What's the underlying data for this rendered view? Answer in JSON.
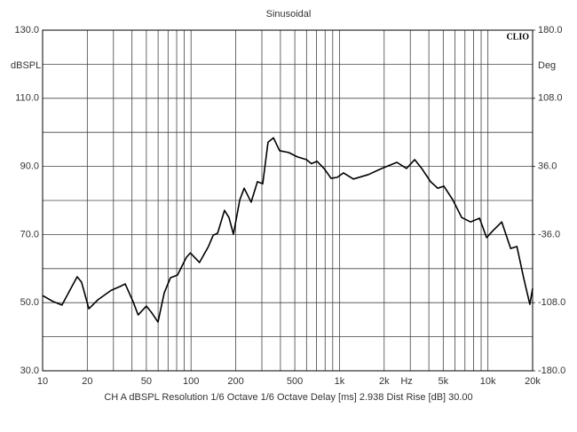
{
  "chart_data": {
    "type": "line",
    "title": "Sinusoidal",
    "brand": "CLIO",
    "y_axis_label": "dBSPL",
    "y2_axis_label": "Deg",
    "x_unit_label": "Hz",
    "footer": "CH A   dBSPL   Resolution 1/6 Octave   1/6 Octave   Delay [ms] 2.938   Dist Rise [dB] 30.00",
    "xlog": true,
    "grid": true,
    "xlim": [
      10,
      20000
    ],
    "xticks": [
      10,
      20,
      50,
      100,
      200,
      500,
      {
        "value": 1000,
        "label": "1k"
      },
      {
        "value": 2000,
        "label": "2k"
      },
      {
        "value": 5000,
        "label": "5k"
      },
      {
        "value": 10000,
        "label": "10k"
      },
      {
        "value": 20000,
        "label": "20k"
      }
    ],
    "xticks_minor": [
      30,
      40,
      60,
      70,
      80,
      90,
      300,
      400,
      600,
      700,
      800,
      900,
      3000,
      4000,
      6000,
      7000,
      8000,
      9000
    ],
    "ylim": [
      30,
      130
    ],
    "yticks": [
      {
        "value": 30,
        "label": "30.0"
      },
      {
        "value": 50,
        "label": "50.0"
      },
      {
        "value": 70,
        "label": "70.0"
      },
      {
        "value": 90,
        "label": "90.0"
      },
      {
        "value": 110,
        "label": "110.0"
      },
      {
        "value": 130,
        "label": "130.0"
      }
    ],
    "yticks_minor": [
      40,
      60,
      80,
      100,
      120
    ],
    "y2lim": [
      -180,
      180
    ],
    "y2ticks": [
      {
        "value": -180,
        "label": "-180.0"
      },
      {
        "value": -108,
        "label": "-108.0"
      },
      {
        "value": -36,
        "label": "-36.0"
      },
      {
        "value": 36,
        "label": "36.0"
      },
      {
        "value": 108,
        "label": "108.0"
      },
      {
        "value": 180,
        "label": "180.0"
      }
    ],
    "x": [
      10,
      11.8,
      13.5,
      15.5,
      17.1,
      18.3,
      20.5,
      23.5,
      28.9,
      33.1,
      36,
      40.7,
      44,
      50,
      54,
      59.9,
      66,
      72.6,
      81,
      93,
      99,
      114,
      131,
      141,
      151,
      168,
      180,
      193,
      213,
      228,
      254,
      280,
      304,
      330,
      359,
      395,
      454,
      521,
      598,
      647,
      705,
      787,
      878,
      967,
      1064,
      1240,
      1566,
      1927,
      2437,
      2832,
      3208,
      3582,
      4111,
      4591,
      5047,
      5797,
      6655,
      7643,
      8774,
      9797,
      10790,
      12388,
      14230,
      15670,
      17500,
      19160,
      20000
    ],
    "series": [
      {
        "color": "#000000",
        "values": [
          52.1,
          50.3,
          49.3,
          54.2,
          57.6,
          56,
          48.2,
          50.8,
          53.6,
          54.7,
          55.5,
          50.3,
          46.4,
          49,
          47.2,
          44.3,
          52.9,
          57.3,
          58.1,
          63.3,
          64.6,
          61.8,
          66.5,
          69.8,
          70.4,
          77.1,
          75,
          70.1,
          80.2,
          83.6,
          79.5,
          85.5,
          84.9,
          97.1,
          98.4,
          94.6,
          94.1,
          92.8,
          92,
          90.8,
          91.5,
          89.4,
          86.5,
          86.8,
          88.1,
          86.3,
          87.6,
          89.4,
          91.2,
          89.4,
          92,
          89.4,
          85.5,
          83.6,
          84.2,
          80.2,
          75,
          73.7,
          74.8,
          69.1,
          71.1,
          73.7,
          65.9,
          66.5,
          56.8,
          49.5,
          54.2
        ]
      }
    ]
  }
}
